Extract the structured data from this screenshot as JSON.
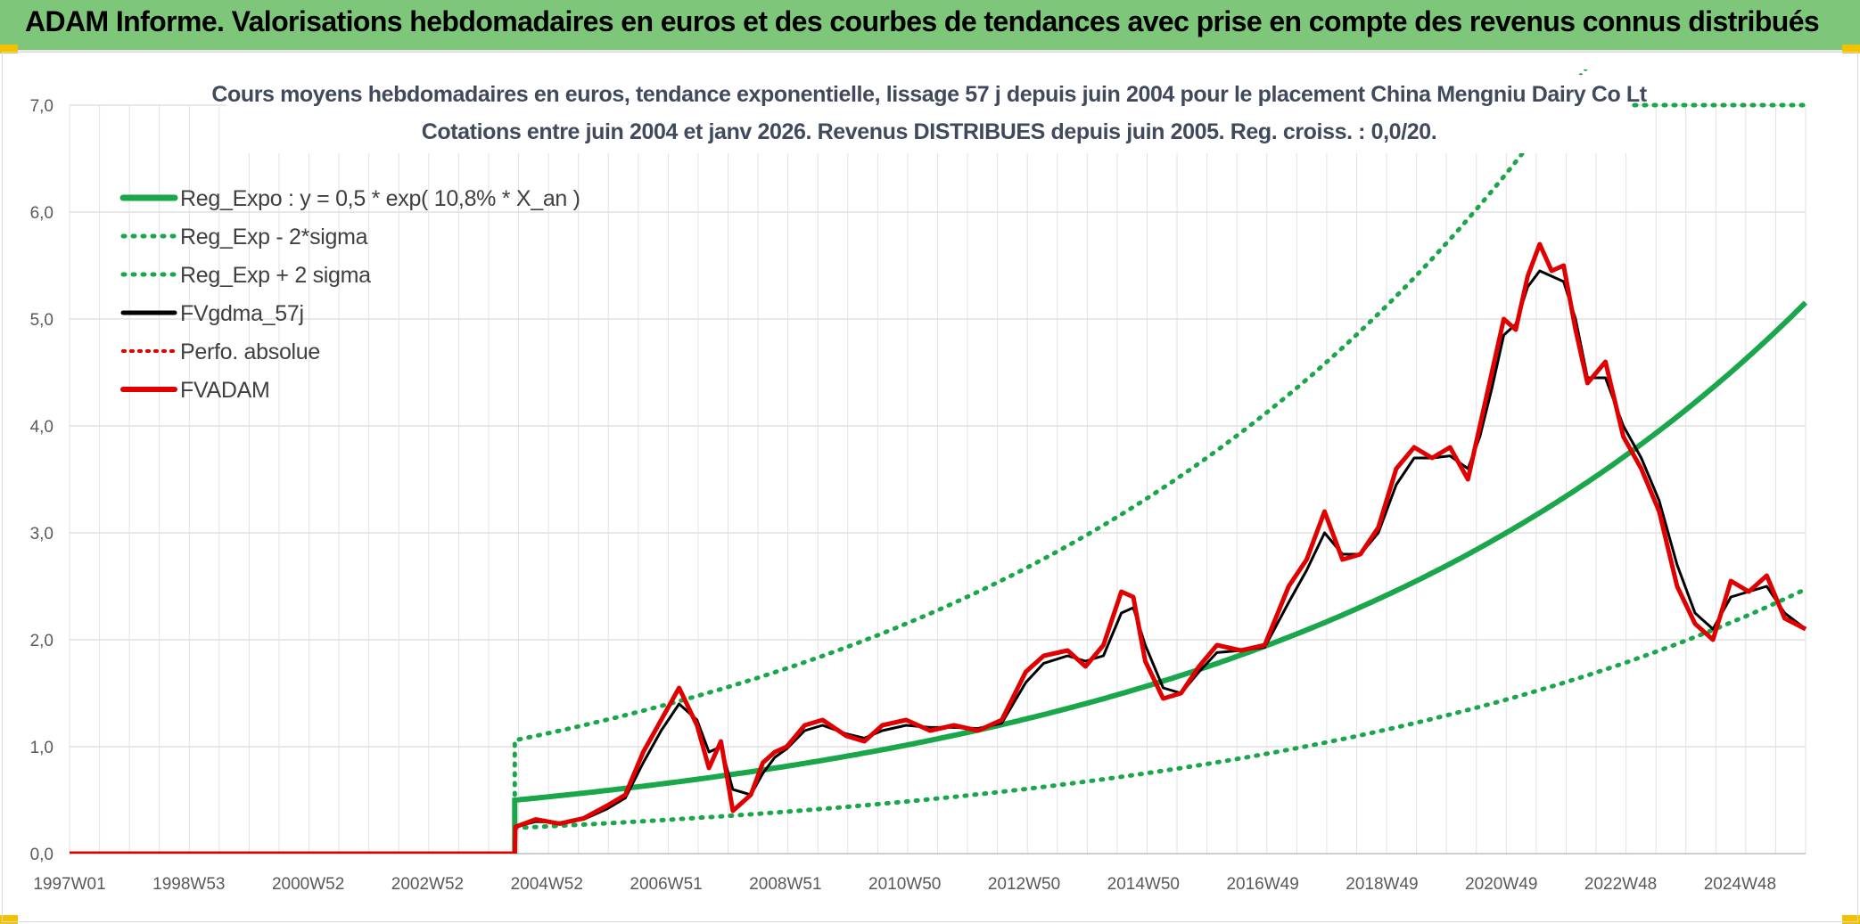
{
  "header": {
    "title": "ADAM Informe. Valorisations hebdomadaires en euros et des courbes de tendances avec prise en compte des revenus connus distribués"
  },
  "chart_data": {
    "type": "line",
    "subtitle_line1": "Cours moyens hebdomadaires en euros, tendance exponentielle, lissage 57 j depuis juin 2004 pour le placement China Mengniu Dairy Co Lt",
    "subtitle_line2": "Cotations entre juin 2004 et janv 2026. Revenus DISTRIBUES depuis juin 2005. Reg. croiss. : 0,0/20.",
    "ylim": [
      0,
      7
    ],
    "y_ticks": [
      "0,0",
      "1,0",
      "2,0",
      "3,0",
      "4,0",
      "5,0",
      "6,0",
      "7,0"
    ],
    "x_ticks": [
      "1997W01",
      "1998W53",
      "2000W52",
      "2002W52",
      "2004W52",
      "2006W51",
      "2008W51",
      "2010W50",
      "2012W50",
      "2014W50",
      "2016W49",
      "2018W49",
      "2020W49",
      "2022W48",
      "2024W48"
    ],
    "x_range_years": [
      1997.0,
      2026.05
    ],
    "grid": true,
    "legend_position": "top-left",
    "colors": {
      "reg": "#1aa64a",
      "fvadam": "#e00000",
      "fvgdma": "#000000",
      "perfo": "#e00000"
    },
    "legend": [
      {
        "label": "Reg_Expo : y = 0,5 * exp( 10,8% *  X_an )",
        "style": "solid-green"
      },
      {
        "label": "Reg_Exp - 2*sigma",
        "style": "dotted-green"
      },
      {
        "label": "Reg_Exp + 2 sigma",
        "style": "dotted-green"
      },
      {
        "label": "FVgdma_57j",
        "style": "solid-black"
      },
      {
        "label": "Perfo. absolue",
        "style": "dotted-red"
      },
      {
        "label": "FVADAM",
        "style": "solid-red"
      }
    ],
    "regression": {
      "a": 0.5,
      "rate": 0.108,
      "start_year": 2004.45,
      "lower_factor": 0.48,
      "upper_factor": 2.12
    },
    "series": [
      {
        "name": "FVADAM",
        "x": [
          1997.0,
          2004.45,
          2004.46,
          2004.8,
          2005.2,
          2005.6,
          2006.0,
          2006.3,
          2006.6,
          2006.9,
          2007.2,
          2007.5,
          2007.7,
          2007.9,
          2008.1,
          2008.4,
          2008.6,
          2008.8,
          2009.0,
          2009.3,
          2009.6,
          2010.0,
          2010.3,
          2010.6,
          2011.0,
          2011.4,
          2011.8,
          2012.2,
          2012.6,
          2013.0,
          2013.3,
          2013.7,
          2014.0,
          2014.3,
          2014.6,
          2014.8,
          2015.0,
          2015.3,
          2015.6,
          2015.9,
          2016.2,
          2016.6,
          2017.0,
          2017.4,
          2017.7,
          2018.0,
          2018.3,
          2018.6,
          2018.9,
          2019.2,
          2019.5,
          2019.8,
          2020.1,
          2020.4,
          2020.6,
          2020.8,
          2021.0,
          2021.2,
          2021.4,
          2021.6,
          2021.8,
          2022.0,
          2022.2,
          2022.4,
          2022.7,
          2023.0,
          2023.3,
          2023.6,
          2023.9,
          2024.2,
          2024.5,
          2024.8,
          2025.1,
          2025.4,
          2025.7,
          2026.05
        ],
        "values": [
          0.0,
          0.0,
          0.25,
          0.32,
          0.28,
          0.33,
          0.45,
          0.55,
          0.95,
          1.25,
          1.55,
          1.2,
          0.8,
          1.05,
          0.4,
          0.55,
          0.85,
          0.95,
          1.0,
          1.2,
          1.25,
          1.1,
          1.05,
          1.2,
          1.25,
          1.15,
          1.2,
          1.15,
          1.25,
          1.7,
          1.85,
          1.9,
          1.75,
          1.95,
          2.45,
          2.4,
          1.8,
          1.45,
          1.5,
          1.75,
          1.95,
          1.9,
          1.95,
          2.5,
          2.75,
          3.2,
          2.75,
          2.8,
          3.05,
          3.6,
          3.8,
          3.7,
          3.8,
          3.5,
          4.0,
          4.5,
          5.0,
          4.9,
          5.4,
          5.7,
          5.45,
          5.5,
          4.9,
          4.4,
          4.6,
          3.9,
          3.6,
          3.2,
          2.5,
          2.15,
          2.0,
          2.55,
          2.45,
          2.6,
          2.2,
          2.1
        ]
      },
      {
        "name": "FVgdma_57j",
        "x": [
          1997.0,
          2004.45,
          2004.46,
          2004.8,
          2005.2,
          2005.6,
          2006.0,
          2006.3,
          2006.6,
          2006.9,
          2007.2,
          2007.5,
          2007.7,
          2007.9,
          2008.1,
          2008.4,
          2008.6,
          2008.8,
          2009.0,
          2009.3,
          2009.6,
          2010.0,
          2010.3,
          2010.6,
          2011.0,
          2011.4,
          2011.8,
          2012.2,
          2012.6,
          2013.0,
          2013.3,
          2013.7,
          2014.0,
          2014.3,
          2014.6,
          2014.8,
          2015.0,
          2015.3,
          2015.6,
          2015.9,
          2016.2,
          2016.6,
          2017.0,
          2017.4,
          2017.7,
          2018.0,
          2018.3,
          2018.6,
          2018.9,
          2019.2,
          2019.5,
          2019.8,
          2020.1,
          2020.4,
          2020.6,
          2020.8,
          2021.0,
          2021.2,
          2021.4,
          2021.6,
          2021.8,
          2022.0,
          2022.2,
          2022.4,
          2022.7,
          2023.0,
          2023.3,
          2023.6,
          2023.9,
          2024.2,
          2024.5,
          2024.8,
          2025.1,
          2025.4,
          2025.7,
          2026.05
        ],
        "values": [
          0.0,
          0.0,
          0.25,
          0.3,
          0.29,
          0.32,
          0.42,
          0.52,
          0.85,
          1.15,
          1.4,
          1.25,
          0.95,
          1.0,
          0.6,
          0.55,
          0.75,
          0.9,
          0.98,
          1.15,
          1.2,
          1.12,
          1.08,
          1.15,
          1.2,
          1.18,
          1.18,
          1.17,
          1.22,
          1.6,
          1.78,
          1.85,
          1.8,
          1.85,
          2.25,
          2.3,
          1.95,
          1.55,
          1.5,
          1.7,
          1.88,
          1.9,
          1.93,
          2.35,
          2.65,
          3.0,
          2.8,
          2.8,
          3.0,
          3.45,
          3.7,
          3.7,
          3.72,
          3.6,
          3.9,
          4.35,
          4.85,
          4.95,
          5.3,
          5.45,
          5.4,
          5.35,
          5.0,
          4.45,
          4.45,
          4.0,
          3.7,
          3.3,
          2.7,
          2.25,
          2.1,
          2.4,
          2.45,
          2.5,
          2.25,
          2.1
        ]
      }
    ]
  }
}
